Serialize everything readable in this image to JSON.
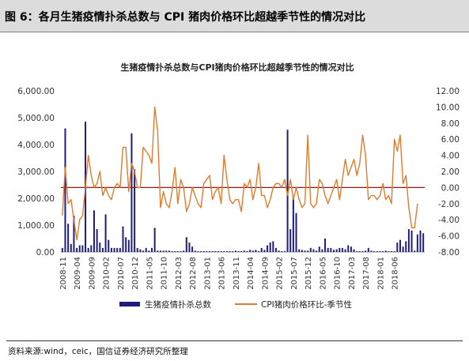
{
  "header": {
    "title": "图 6：各月生猪疫情扑杀总数与 CPI 猪肉价格环比超越季节性的情况对比"
  },
  "footer": {
    "source": "资料来源:wind，ceic，国信证券经济研究所整理"
  },
  "colors": {
    "bar": "#1f1f7a",
    "line": "#e07b2c",
    "ref_line": "#8b1a1a",
    "header_bg": "#dcdcdc"
  },
  "chart_data": {
    "type": "bar+line",
    "title": "生猪疫情扑杀总数与CPI猪肉价格环比超越季节性的情况对比",
    "xlabel": "",
    "ylabel_left": "",
    "ylabel_right": "",
    "ylim_left": [
      0,
      6000
    ],
    "ylim_right": [
      -8,
      12
    ],
    "left_ticks": [
      "0.00",
      "1,000.00",
      "2,000.00",
      "3,000.00",
      "4,000.00",
      "5,000.00",
      "6,000.00"
    ],
    "right_ticks": [
      "-8.00",
      "-6.00",
      "-4.00",
      "-2.00",
      "0.00",
      "2.00",
      "4.00",
      "6.00",
      "8.00",
      "10.00",
      "12.00"
    ],
    "x_start": "2008-11",
    "x_tick_labels": [
      "2008-11",
      "2009-04",
      "2009-09",
      "2010-02",
      "2010-07",
      "2010-12",
      "2011-05",
      "2011-10",
      "2012-03",
      "2012-08",
      "2013-01",
      "2013-06",
      "2013-11",
      "2014-04",
      "2014-09",
      "2015-02",
      "2015-07",
      "2015-12",
      "2016-05",
      "2016-10",
      "2017-03",
      "2017-08",
      "2018-01",
      "2018-06"
    ],
    "grid": false,
    "legend_position": "bottom",
    "series": [
      {
        "name": "生猪疫情扑杀总数",
        "kind": "bar",
        "axis": "left",
        "values": [
          150,
          4600,
          1050,
          300,
          1350,
          150,
          250,
          250,
          4850,
          150,
          250,
          1550,
          850,
          350,
          150,
          1400,
          450,
          150,
          150,
          150,
          150,
          950,
          550,
          450,
          4420,
          3080,
          150,
          100,
          50,
          150,
          50,
          150,
          900,
          50,
          50,
          50,
          50,
          50,
          30,
          30,
          30,
          30,
          50,
          550,
          350,
          200,
          50,
          30,
          30,
          30,
          30,
          30,
          30,
          30,
          30,
          30,
          30,
          30,
          30,
          30,
          50,
          30,
          30,
          50,
          30,
          80,
          50,
          80,
          30,
          150,
          80,
          250,
          350,
          400,
          150,
          50,
          30,
          30,
          4550,
          850,
          2050,
          1450,
          100,
          80,
          50,
          50,
          150,
          100,
          50,
          200,
          100,
          500,
          150,
          150,
          80,
          100,
          150,
          150,
          100,
          250,
          200,
          100,
          30,
          30,
          30,
          50,
          150,
          50,
          30,
          30,
          30,
          30,
          50,
          30,
          30,
          30,
          350,
          450,
          200,
          400,
          850,
          800,
          50,
          650,
          800,
          700
        ]
      },
      {
        "name": "CPI猪肉价格环比-季节性",
        "kind": "line",
        "axis": "right",
        "values": [
          -3.5,
          2.5,
          -2.0,
          -1.5,
          -4.0,
          -6.5,
          -4.0,
          -3.5,
          0.0,
          4.0,
          1.5,
          0.0,
          0.5,
          2.0,
          -1.0,
          0.0,
          -1.0,
          -1.5,
          0.0,
          0.5,
          0.0,
          5.0,
          5.0,
          -0.5,
          3.0,
          2.0,
          0.0,
          0.0,
          5.0,
          4.5,
          4.0,
          3.0,
          10.0,
          7.0,
          -2.5,
          -0.5,
          -2.0,
          -2.5,
          -0.5,
          2.5,
          -2.0,
          1.0,
          0.0,
          -3.0,
          -2.0,
          0.0,
          -1.0,
          -2.0,
          -2.5,
          0.5,
          1.0,
          1.5,
          -1.5,
          -0.5,
          0.0,
          -2.0,
          4.0,
          1.0,
          -1.5,
          -2.0,
          -1.5,
          -1.5,
          -3.0,
          0.5,
          0.0,
          1.0,
          -1.5,
          0.0,
          3.0,
          -1.0,
          -1.0,
          -2.5,
          -1.5,
          0.0,
          0.5,
          0.5,
          0.0,
          1.0,
          -1.0,
          1.0,
          -1.5,
          0.0,
          -1.5,
          -2.5,
          -2.0,
          6.5,
          -2.0,
          -2.5,
          -2.0,
          1.0,
          0.5,
          -1.0,
          -2.0,
          -1.0,
          0.0,
          1.0,
          -1.5,
          1.0,
          3.5,
          1.5,
          2.5,
          3.5,
          1.5,
          3.0,
          6.5,
          4.0,
          -1.5,
          -1.0,
          -1.0,
          -1.5,
          -1.0,
          0.5,
          -1.5,
          -1.0,
          -2.0,
          6.0,
          4.5,
          6.5,
          0.5,
          1.5,
          -2.5,
          -5.0,
          -5.0,
          -2.0
        ]
      }
    ]
  }
}
